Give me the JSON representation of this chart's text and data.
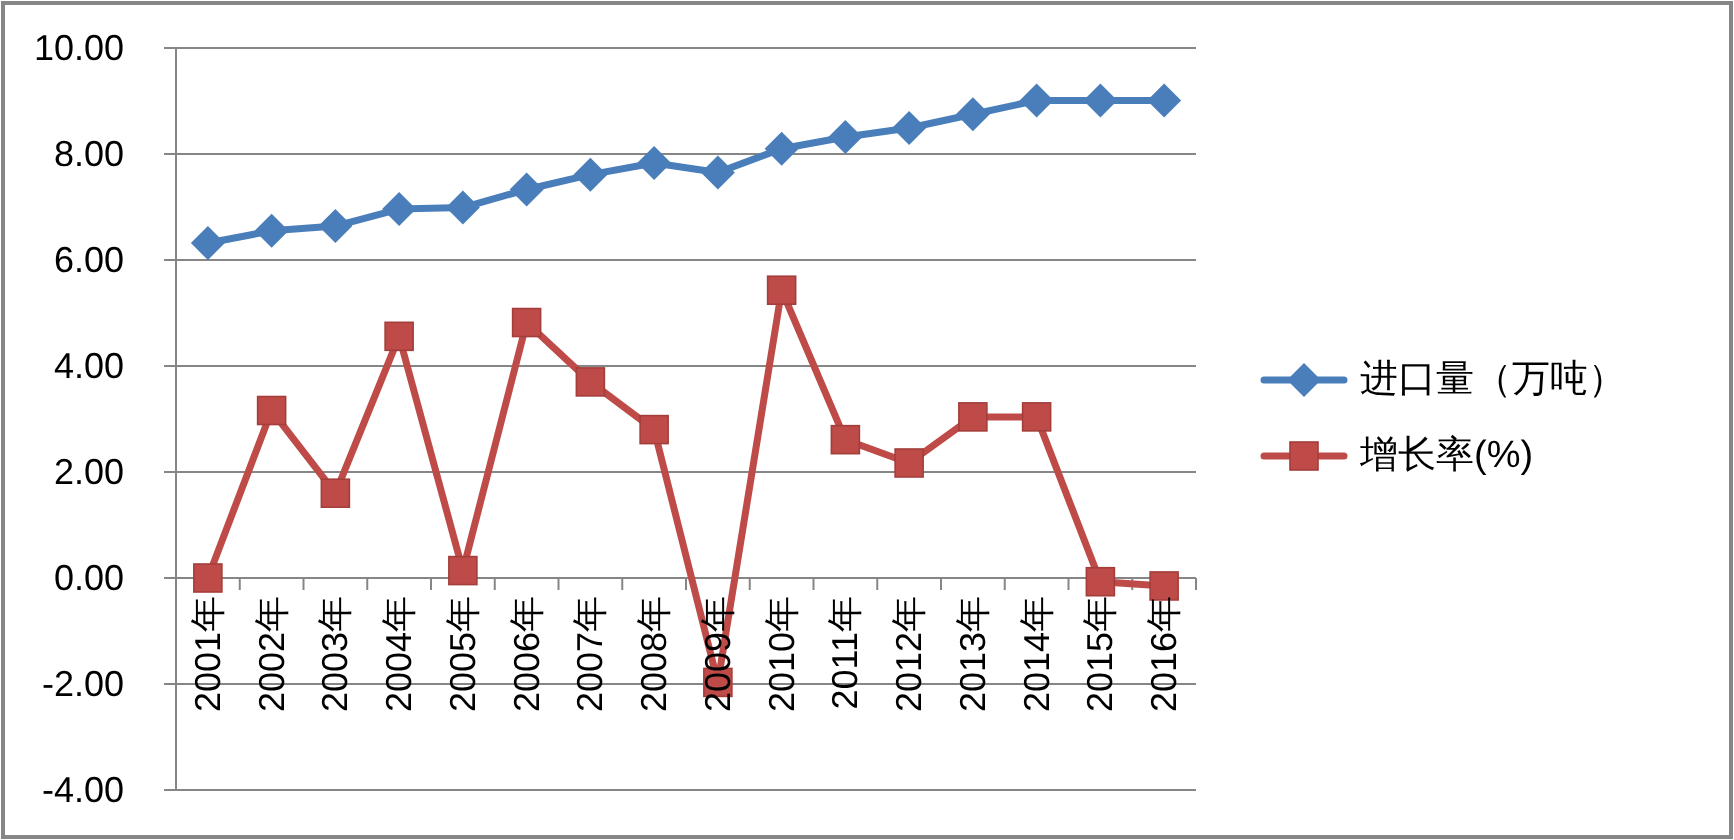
{
  "chart_data": {
    "type": "line",
    "categories": [
      "2001年",
      "2002年",
      "2003年",
      "2004年",
      "2005年",
      "2006年",
      "2007年",
      "2008年",
      "2009年",
      "2010年",
      "2011年",
      "2012年",
      "2013年",
      "2014年",
      "2015年",
      "2016年"
    ],
    "series": [
      {
        "name": "进口量（万吨）",
        "color": "#4a7ebb",
        "marker": "diamond",
        "values": [
          6.32,
          6.55,
          6.64,
          6.96,
          6.99,
          7.33,
          7.61,
          7.83,
          7.65,
          8.1,
          8.32,
          8.49,
          8.75,
          9.01,
          9.01,
          9.01
        ]
      },
      {
        "name": "增长率(%)",
        "color": "#be4b48",
        "marker": "square",
        "values": [
          0.0,
          3.16,
          1.6,
          4.56,
          0.14,
          4.82,
          3.7,
          2.8,
          -1.97,
          5.43,
          2.61,
          2.17,
          3.04,
          3.04,
          -0.07,
          -0.15
        ]
      }
    ],
    "ylim": [
      -4,
      10
    ],
    "yticks": [
      {
        "value": -4,
        "label": "-4.00"
      },
      {
        "value": -2,
        "label": "-2.00"
      },
      {
        "value": 0,
        "label": "0.00"
      },
      {
        "value": 2,
        "label": "2.00"
      },
      {
        "value": 4,
        "label": "4.00"
      },
      {
        "value": 6,
        "label": "6.00"
      },
      {
        "value": 8,
        "label": "8.00"
      },
      {
        "value": 10,
        "label": "10.00"
      }
    ],
    "grid": "y",
    "legend": "right",
    "line_style": "solid"
  }
}
